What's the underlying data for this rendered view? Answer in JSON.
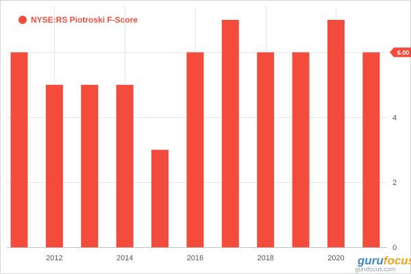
{
  "chart_data": {
    "type": "bar",
    "title": "",
    "xlabel": "",
    "ylabel": "",
    "legend": {
      "position": "top-left"
    },
    "series": [
      {
        "name": "NYSE:RS Piotroski F-Score",
        "color": "#f44c3c",
        "x": [
          2011,
          2012,
          2013,
          2014,
          2015,
          2016,
          2017,
          2018,
          2019,
          2020,
          2021
        ],
        "values": [
          6,
          5,
          5,
          5,
          3,
          6,
          7,
          6,
          6,
          7,
          6
        ]
      }
    ],
    "x_ticks": [
      "2012",
      "2014",
      "2016",
      "2018",
      "2020"
    ],
    "y_ticks": [
      "0",
      "2",
      "4",
      "6"
    ],
    "ylim": [
      0,
      7.4
    ],
    "grid": true,
    "last_value_label": "6.00",
    "watermark": {
      "brand": "gurufocus",
      "sub": "gurufocus.com",
      "color_a": "#3e86c8",
      "color_b": "#f4a11d"
    }
  }
}
